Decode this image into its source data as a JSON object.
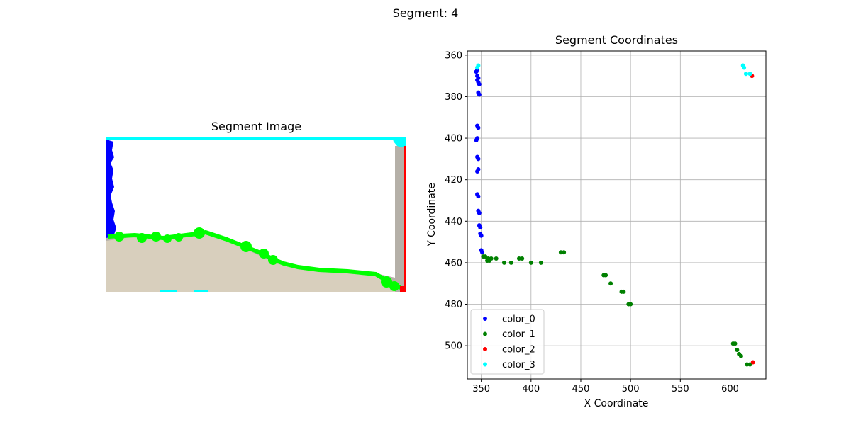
{
  "suptitle": "Segment: 4",
  "colors": {
    "color_0": "#0000ff",
    "color_1": "#008000",
    "color_2": "#ff0000",
    "color_3": "#00ffff",
    "image_bright_green": "#00ff00",
    "image_sand": "#d8cfbd",
    "image_gray": "#b5b0a8"
  },
  "chart_data": [
    {
      "type": "image",
      "title": "Segment Image"
    },
    {
      "type": "scatter",
      "title": "Segment Coordinates",
      "xlabel": "X Coordinate",
      "ylabel": "Y Coordinate",
      "xlim": [
        336,
        636
      ],
      "ylim": [
        516,
        358
      ],
      "y_inverted": true,
      "xticks": [
        350,
        400,
        450,
        500,
        550,
        600
      ],
      "yticks": [
        360,
        380,
        400,
        420,
        440,
        460,
        480,
        500
      ],
      "grid": true,
      "legend_position": "lower-left",
      "series": [
        {
          "name": "color_0",
          "color": "#0000ff",
          "points": [
            [
              346,
              367
            ],
            [
              345,
              368
            ],
            [
              346,
              370
            ],
            [
              347,
              371
            ],
            [
              346,
              372
            ],
            [
              347,
              373
            ],
            [
              348,
              374
            ],
            [
              347,
              378
            ],
            [
              348,
              379
            ],
            [
              346,
              394
            ],
            [
              347,
              395
            ],
            [
              346,
              400
            ],
            [
              345,
              401
            ],
            [
              346,
              409
            ],
            [
              347,
              410
            ],
            [
              347,
              415
            ],
            [
              346,
              416
            ],
            [
              346,
              427
            ],
            [
              347,
              428
            ],
            [
              347,
              435
            ],
            [
              348,
              436
            ],
            [
              348,
              442
            ],
            [
              349,
              443
            ],
            [
              349,
              446
            ],
            [
              350,
              447
            ],
            [
              350,
              454
            ],
            [
              351,
              455
            ]
          ]
        },
        {
          "name": "color_1",
          "color": "#008000",
          "points": [
            [
              352,
              457
            ],
            [
              354,
              457
            ],
            [
              357,
              458
            ],
            [
              358,
              459
            ],
            [
              356,
              459
            ],
            [
              360,
              458
            ],
            [
              365,
              458
            ],
            [
              373,
              460
            ],
            [
              380,
              460
            ],
            [
              388,
              458
            ],
            [
              391,
              458
            ],
            [
              400,
              460
            ],
            [
              410,
              460
            ],
            [
              430,
              455
            ],
            [
              433,
              455
            ],
            [
              473,
              466
            ],
            [
              475,
              466
            ],
            [
              480,
              470
            ],
            [
              491,
              474
            ],
            [
              493,
              474
            ],
            [
              498,
              480
            ],
            [
              500,
              480
            ],
            [
              603,
              499
            ],
            [
              605,
              499
            ],
            [
              607,
              502
            ],
            [
              609,
              504
            ],
            [
              611,
              505
            ],
            [
              617,
              509
            ],
            [
              620,
              509
            ]
          ]
        },
        {
          "name": "color_2",
          "color": "#ff0000",
          "points": [
            [
              623,
              508
            ],
            [
              622,
              370
            ]
          ]
        },
        {
          "name": "color_3",
          "color": "#00ffff",
          "points": [
            [
              347,
              365
            ],
            [
              346,
              366
            ],
            [
              613,
              365
            ],
            [
              614,
              366
            ],
            [
              616,
              369
            ],
            [
              620,
              369
            ]
          ]
        }
      ]
    }
  ]
}
